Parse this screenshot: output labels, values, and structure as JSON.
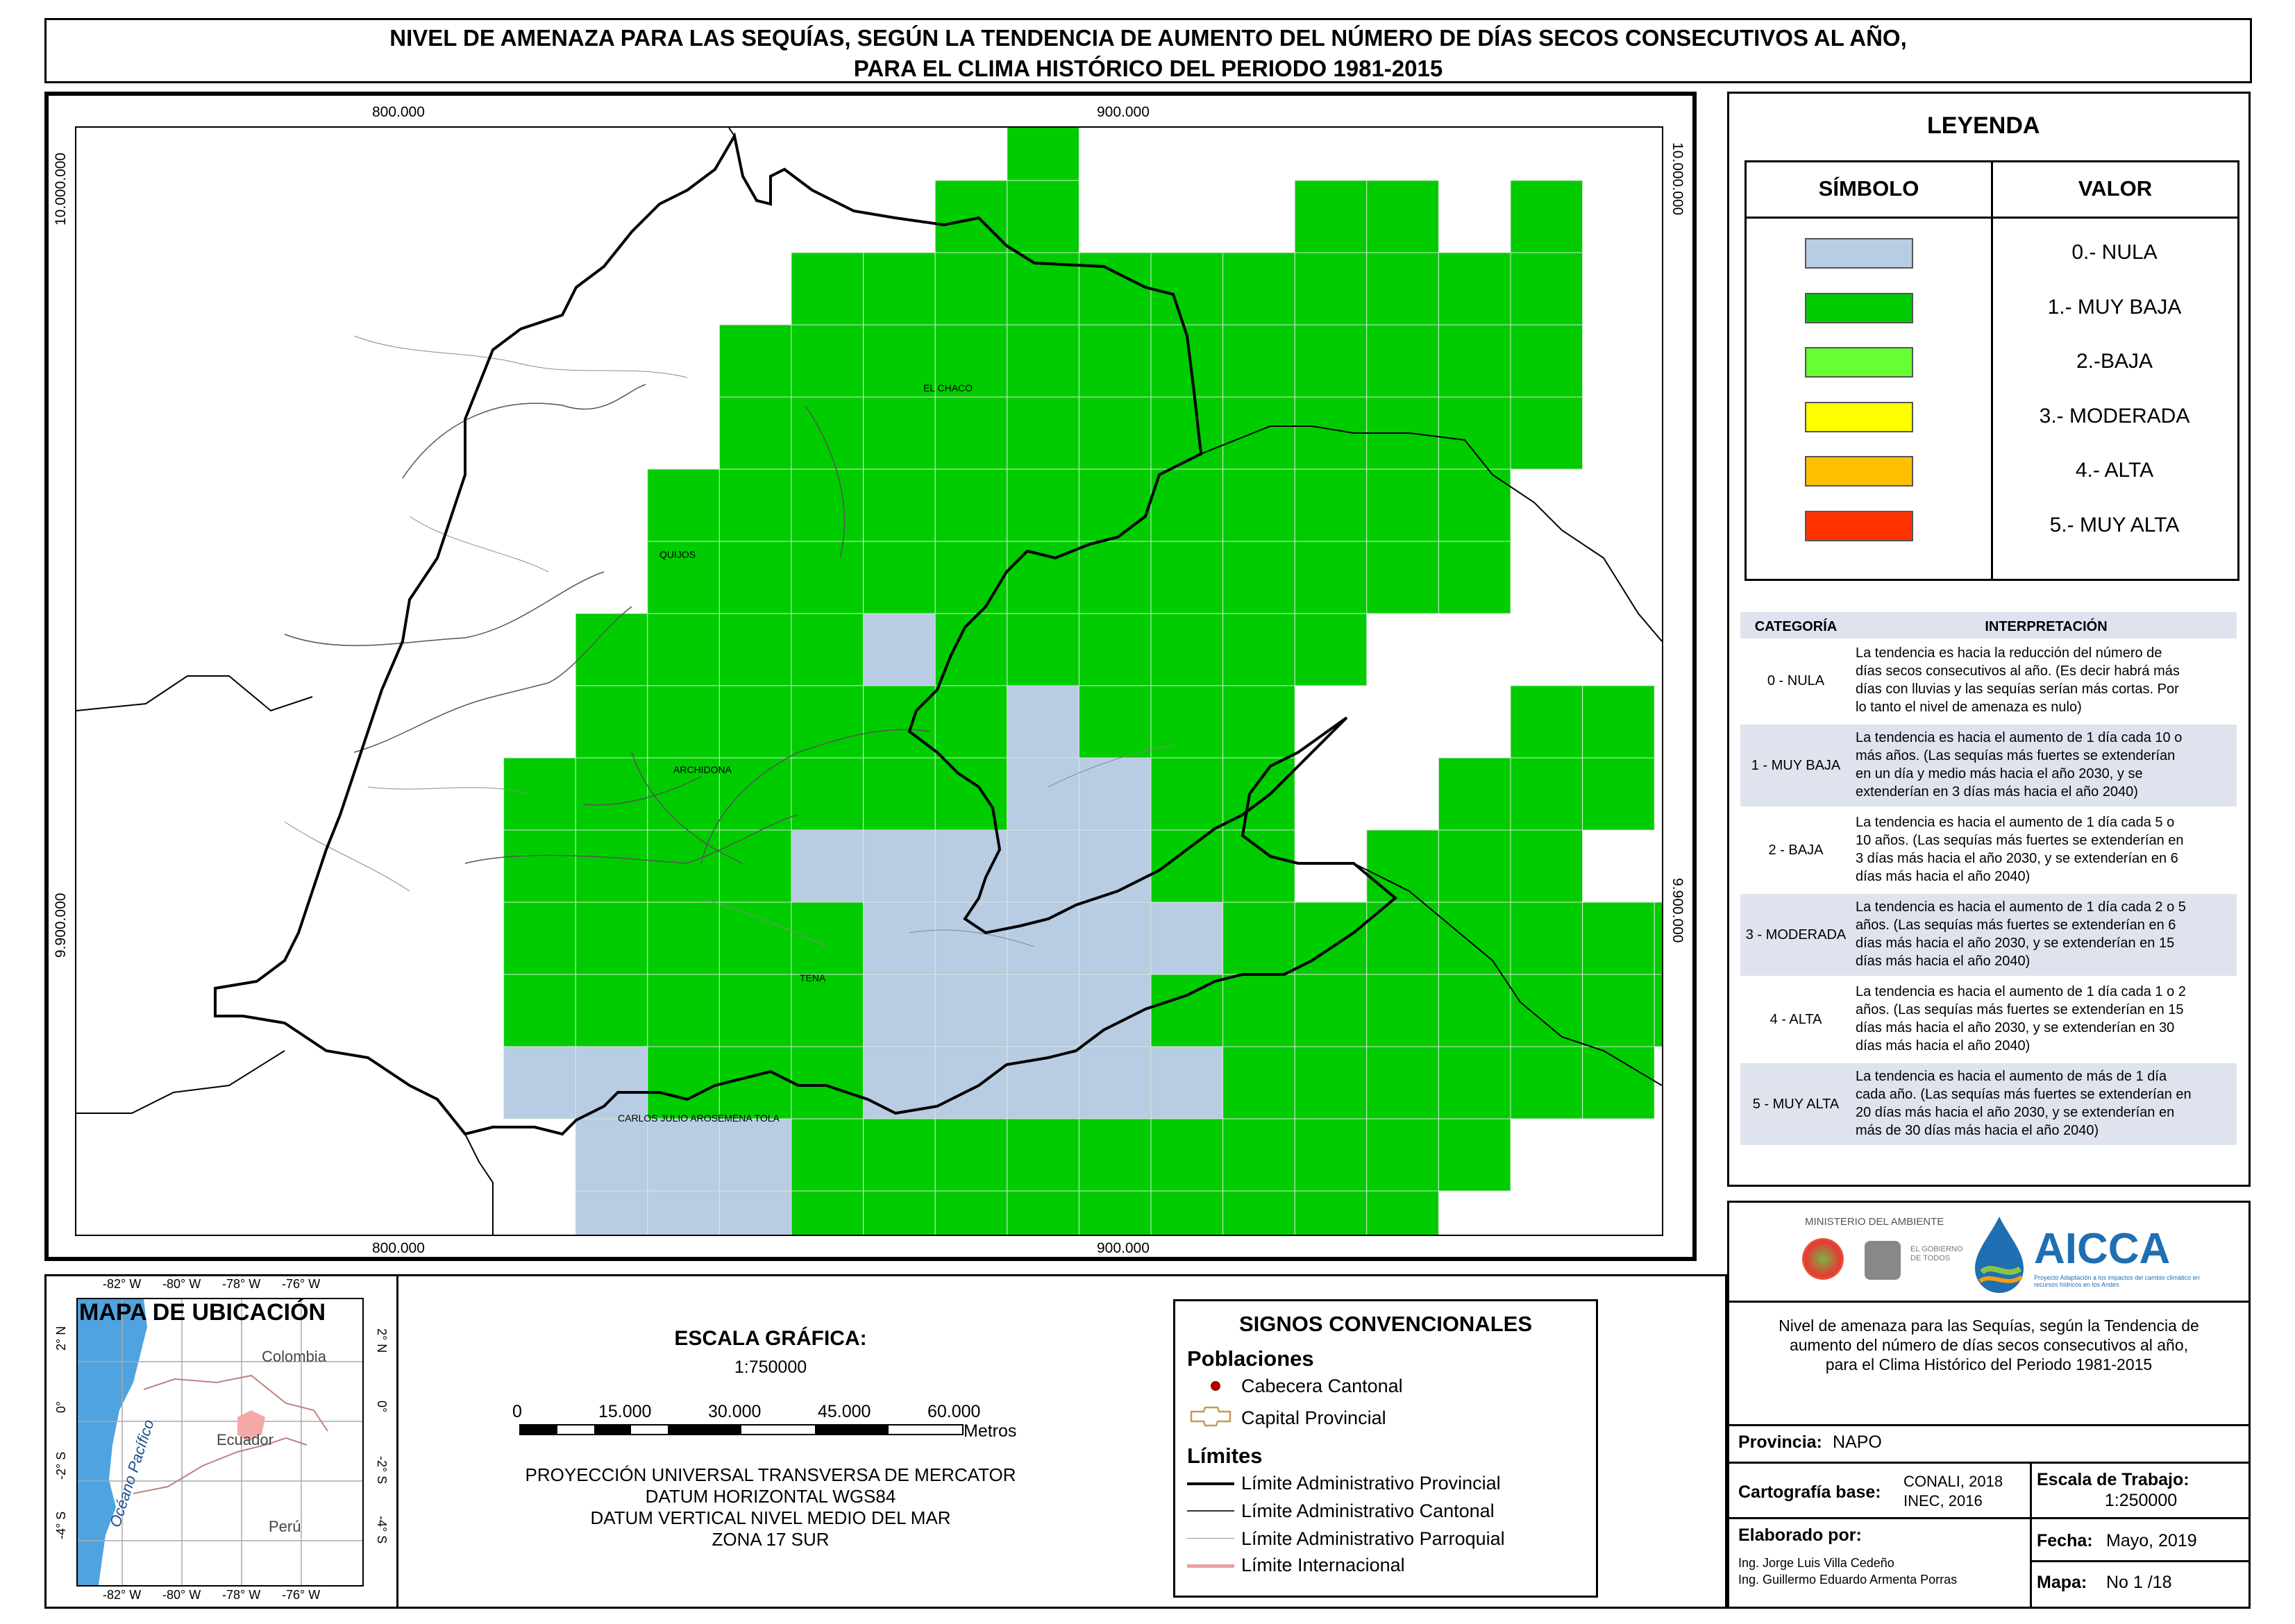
{
  "title": {
    "line1": "NIVEL DE AMENAZA PARA LAS SEQUÍAS, SEGÚN LA TENDENCIA DE AUMENTO DEL NÚMERO DE DÍAS SECOS CONSECUTIVOS AL AÑO,",
    "line2": "PARA EL CLIMA HISTÓRICO DEL PERIODO 1981-2015"
  },
  "map": {
    "x_ticks": [
      "800.000",
      "900.000"
    ],
    "y_ticks": [
      "10.000.000",
      "9.900.000"
    ],
    "place_labels": [
      "EL CHACO",
      "QUIJOS",
      "ARCHIDONA",
      "TENA",
      "CARLOS JULIO AROSEMENA TOLA"
    ],
    "class_colors": {
      "nula": "#b8cce4",
      "muy_baja": "#00cc00"
    }
  },
  "legend": {
    "title": "LEYENDA",
    "col_symbol": "SÍMBOLO",
    "col_value": "VALOR",
    "items": [
      {
        "label": "0.- NULA",
        "color": "#b8cce4"
      },
      {
        "label": "1.- MUY BAJA",
        "color": "#00cc00"
      },
      {
        "label": "2.-BAJA",
        "color": "#66ff33"
      },
      {
        "label": "3.- MODERADA",
        "color": "#ffff00"
      },
      {
        "label": "4.- ALTA",
        "color": "#ffc000"
      },
      {
        "label": "5.- MUY ALTA",
        "color": "#ff3300"
      }
    ]
  },
  "interpretation": {
    "col_category": "CATEGORÍA",
    "col_interp": "INTERPRETACIÓN",
    "rows": [
      {
        "cat": "0 - NULA",
        "lines": [
          "La tendencia es hacia la reducción del número de",
          "días secos consecutivos al año. (Es decir habrá más",
          "días con lluvias y las sequías serían más cortas. Por",
          "lo tanto el nivel de amenaza es nulo)"
        ]
      },
      {
        "cat": "1 - MUY BAJA",
        "lines": [
          "La tendencia es hacia el aumento de 1 día cada 10 o",
          "más años. (Las sequías más fuertes se extenderían",
          "en un día y medio más hacia el año 2030, y se",
          "extenderían en 3 días más hacia el año 2040)"
        ]
      },
      {
        "cat": "2 - BAJA",
        "lines": [
          "La tendencia es hacia el aumento de 1 día cada 5 o",
          "10 años. (Las sequías más fuertes se extenderían en",
          "3 días más hacia el año 2030, y se extenderían en 6",
          "días más hacia el año 2040)"
        ]
      },
      {
        "cat": "3 - MODERADA",
        "lines": [
          "La tendencia es hacia el aumento de 1 día cada 2 o 5",
          "años. (Las sequías más fuertes se extenderían en 6",
          "días más hacia el año 2030, y se extenderían en 15",
          "días más hacia el año 2040)"
        ]
      },
      {
        "cat": "4 - ALTA",
        "lines": [
          "La tendencia es hacia el aumento de 1 día cada 1 o 2",
          "años. (Las sequías más fuertes se extenderían en 15",
          "días más hacia el año 2030, y se extenderían en 30",
          "días más hacia el año 2040)"
        ]
      },
      {
        "cat": "5 - MUY ALTA",
        "lines": [
          "La tendencia es hacia el aumento de más de 1 día",
          "cada año. (Las sequías más fuertes se extenderían en",
          "20 días más hacia el año 2030, y se extenderían en",
          "más de 30 días más hacia el año 2040)"
        ]
      }
    ]
  },
  "location_map": {
    "title": "MAPA DE UBICACIÓN",
    "lon_labels": [
      "-82° W",
      "-80° W",
      "-78° W",
      "-76° W"
    ],
    "lat_labels": [
      "2° N",
      "0°",
      "-2° S",
      "-4° S"
    ],
    "countries": [
      "Colombia",
      "Ecuador",
      "Perú"
    ],
    "ocean": "Océano Pacífico"
  },
  "scale": {
    "title": "ESCALA GRÁFICA:",
    "ratio": "1:750000",
    "ticks": [
      "0",
      "15.000",
      "30.000",
      "45.000",
      "60.000"
    ],
    "unit": "Metros",
    "projection": [
      "PROYECCIÓN UNIVERSAL TRANSVERSA DE MERCATOR",
      "DATUM HORIZONTAL WGS84",
      "DATUM VERTICAL NIVEL MEDIO DEL MAR",
      "ZONA 17 SUR"
    ]
  },
  "signs": {
    "title": "SIGNOS CONVENCIONALES",
    "poblaciones": "Poblaciones",
    "cabecera": "Cabecera Cantonal",
    "capital": "Capital Provincial",
    "limites": "Límites",
    "lim_prov": "Límite Administrativo Provincial",
    "lim_cant": "Límite Administrativo Cantonal",
    "lim_parr": "Límite Administrativo Parroquial",
    "lim_int": "Límite Internacional"
  },
  "info": {
    "ministerio": "MINISTERIO DEL AMBIENTE",
    "brand": "AICCA",
    "brand_sub": "Proyecto Adaptación a los impactos del cambio climático en recursos hídricos en los Andes",
    "gobierno": "EL GOBIERNO DE TODOS",
    "description": [
      "Nivel de amenaza para las Sequías, según la Tendencia de",
      "aumento del número de días secos consecutivos al año,",
      "para el Clima Histórico del Periodo 1981-2015"
    ],
    "provincia_label": "Provincia:",
    "provincia": "NAPO",
    "cartografia_label": "Cartografía base:",
    "cartografia_1": "CONALI, 2018",
    "cartografia_2": "INEC, 2016",
    "escala_label": "Escala de Trabajo:",
    "escala": "1:250000",
    "elaborado_label": "Elaborado por:",
    "autor1": "Ing. Jorge Luis Villa Cedeño",
    "autor2": "Ing. Guillermo Eduardo Armenta Porras",
    "fecha_label": "Fecha:",
    "fecha": "Mayo, 2019",
    "mapa_label": "Mapa:",
    "mapa": "No 1 /18"
  }
}
